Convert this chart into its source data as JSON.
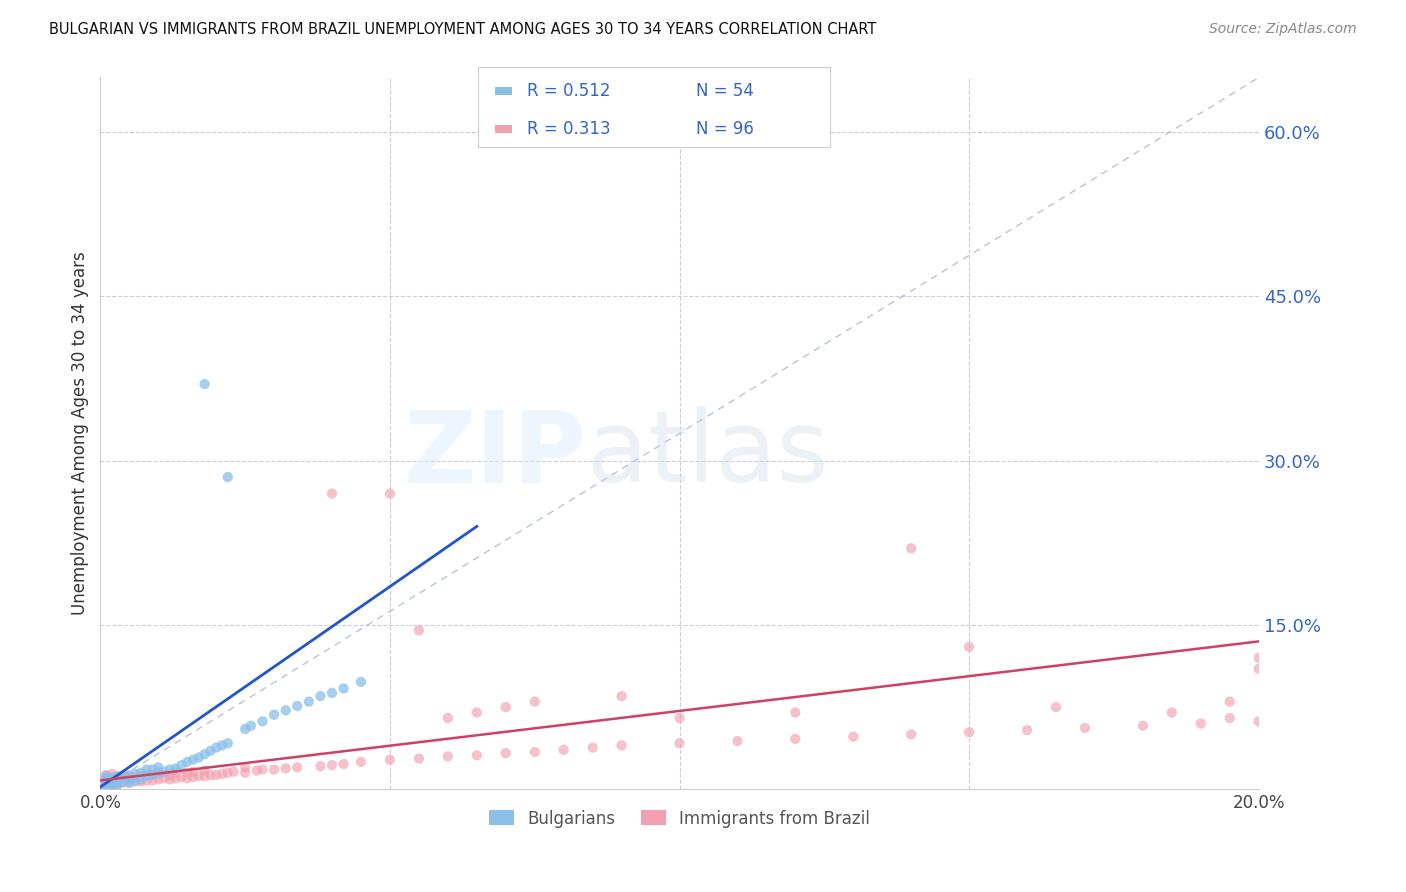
{
  "title": "BULGARIAN VS IMMIGRANTS FROM BRAZIL UNEMPLOYMENT AMONG AGES 30 TO 34 YEARS CORRELATION CHART",
  "source": "Source: ZipAtlas.com",
  "ylabel": "Unemployment Among Ages 30 to 34 years",
  "xlim": [
    0.0,
    0.2
  ],
  "ylim": [
    0.0,
    0.65
  ],
  "yticks_right": [
    0.15,
    0.3,
    0.45,
    0.6
  ],
  "ytick_right_labels": [
    "15.0%",
    "30.0%",
    "45.0%",
    "60.0%"
  ],
  "blue_color": "#89bfe8",
  "pink_color": "#f2a0b0",
  "blue_line_color": "#2255cc",
  "pink_line_color": "#d04060",
  "ref_line_color": "#aabbcc",
  "grid_color": "#ccccdd",
  "legend_entries": [
    {
      "color": "#89bfe8",
      "r": "0.512",
      "n": "54"
    },
    {
      "color": "#f2a0b0",
      "r": "0.313",
      "n": "96"
    }
  ],
  "blue_x": [
    0.001,
    0.001,
    0.001,
    0.001,
    0.001,
    0.002,
    0.002,
    0.002,
    0.002,
    0.003,
    0.003,
    0.003,
    0.004,
    0.004,
    0.005,
    0.005,
    0.005,
    0.006,
    0.006,
    0.007,
    0.007,
    0.008,
    0.008,
    0.009,
    0.009,
    0.01,
    0.01,
    0.011,
    0.012,
    0.013,
    0.014,
    0.015,
    0.016,
    0.017,
    0.018,
    0.019,
    0.02,
    0.021,
    0.022,
    0.025,
    0.026,
    0.028,
    0.03,
    0.032,
    0.034,
    0.036,
    0.038,
    0.04,
    0.042,
    0.045,
    0.018,
    0.022,
    0.002,
    0.003
  ],
  "blue_y": [
    0.005,
    0.007,
    0.009,
    0.003,
    0.012,
    0.005,
    0.008,
    0.01,
    0.003,
    0.006,
    0.009,
    0.012,
    0.007,
    0.01,
    0.006,
    0.009,
    0.012,
    0.008,
    0.014,
    0.009,
    0.015,
    0.012,
    0.018,
    0.013,
    0.018,
    0.015,
    0.02,
    0.016,
    0.018,
    0.019,
    0.022,
    0.025,
    0.027,
    0.029,
    0.032,
    0.035,
    0.038,
    0.04,
    0.042,
    0.055,
    0.058,
    0.062,
    0.068,
    0.072,
    0.076,
    0.08,
    0.085,
    0.088,
    0.092,
    0.098,
    0.37,
    0.285,
    0.003,
    0.004
  ],
  "pink_x": [
    0.0,
    0.0,
    0.001,
    0.001,
    0.001,
    0.001,
    0.002,
    0.002,
    0.002,
    0.002,
    0.003,
    0.003,
    0.003,
    0.004,
    0.004,
    0.004,
    0.005,
    0.005,
    0.005,
    0.006,
    0.006,
    0.007,
    0.007,
    0.008,
    0.008,
    0.009,
    0.009,
    0.01,
    0.01,
    0.011,
    0.012,
    0.012,
    0.013,
    0.013,
    0.014,
    0.015,
    0.015,
    0.016,
    0.016,
    0.017,
    0.018,
    0.018,
    0.019,
    0.02,
    0.021,
    0.022,
    0.023,
    0.025,
    0.025,
    0.027,
    0.028,
    0.03,
    0.032,
    0.034,
    0.038,
    0.04,
    0.042,
    0.045,
    0.05,
    0.055,
    0.06,
    0.065,
    0.07,
    0.075,
    0.08,
    0.085,
    0.09,
    0.1,
    0.11,
    0.12,
    0.13,
    0.14,
    0.15,
    0.16,
    0.17,
    0.18,
    0.19,
    0.2,
    0.2,
    0.195,
    0.04,
    0.05,
    0.055,
    0.06,
    0.065,
    0.07,
    0.075,
    0.09,
    0.1,
    0.12,
    0.14,
    0.15,
    0.165,
    0.185,
    0.195,
    0.2
  ],
  "pink_y": [
    0.005,
    0.008,
    0.004,
    0.007,
    0.01,
    0.013,
    0.005,
    0.008,
    0.011,
    0.014,
    0.005,
    0.008,
    0.011,
    0.006,
    0.009,
    0.012,
    0.006,
    0.009,
    0.013,
    0.007,
    0.011,
    0.007,
    0.012,
    0.008,
    0.013,
    0.008,
    0.013,
    0.009,
    0.014,
    0.01,
    0.009,
    0.013,
    0.01,
    0.015,
    0.011,
    0.01,
    0.015,
    0.011,
    0.016,
    0.012,
    0.012,
    0.017,
    0.013,
    0.013,
    0.014,
    0.015,
    0.016,
    0.015,
    0.02,
    0.017,
    0.018,
    0.018,
    0.019,
    0.02,
    0.021,
    0.022,
    0.023,
    0.025,
    0.027,
    0.028,
    0.03,
    0.031,
    0.033,
    0.034,
    0.036,
    0.038,
    0.04,
    0.042,
    0.044,
    0.046,
    0.048,
    0.05,
    0.052,
    0.054,
    0.056,
    0.058,
    0.06,
    0.062,
    0.11,
    0.08,
    0.27,
    0.27,
    0.145,
    0.065,
    0.07,
    0.075,
    0.08,
    0.085,
    0.065,
    0.07,
    0.22,
    0.13,
    0.075,
    0.07,
    0.065,
    0.12
  ],
  "blue_line_x": [
    0.0,
    0.065
  ],
  "blue_line_y": [
    0.002,
    0.24
  ],
  "pink_line_x": [
    0.0,
    0.2
  ],
  "pink_line_y": [
    0.008,
    0.135
  ]
}
